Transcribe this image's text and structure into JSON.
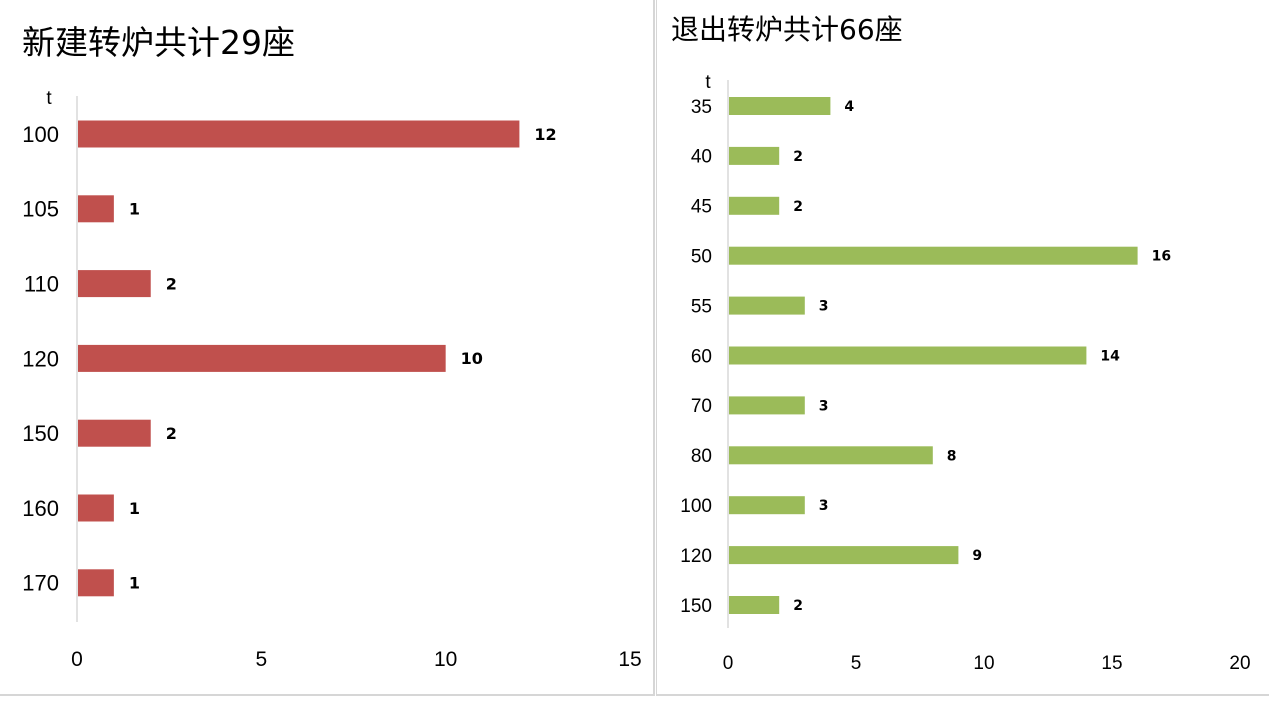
{
  "chart_data": [
    {
      "type": "bar",
      "orientation": "horizontal",
      "title": "新建转炉共计29座",
      "ylabel": "t",
      "categories": [
        "100",
        "105",
        "110",
        "120",
        "150",
        "160",
        "170"
      ],
      "values": [
        12,
        1,
        2,
        10,
        2,
        1,
        1
      ],
      "xlim": [
        0,
        15
      ],
      "xticks": [
        0,
        5,
        10,
        15
      ],
      "grid": false,
      "color": "#c0504d"
    },
    {
      "type": "bar",
      "orientation": "horizontal",
      "title": "退出转炉共计66座",
      "ylabel": "t",
      "categories": [
        "35",
        "40",
        "45",
        "50",
        "55",
        "60",
        "70",
        "80",
        "100",
        "120",
        "150"
      ],
      "values": [
        4,
        2,
        2,
        16,
        3,
        14,
        3,
        8,
        3,
        9,
        2
      ],
      "xlim": [
        0,
        20
      ],
      "xticks": [
        0,
        5,
        10,
        15,
        20
      ],
      "grid": false,
      "color": "#9bbb59"
    }
  ]
}
